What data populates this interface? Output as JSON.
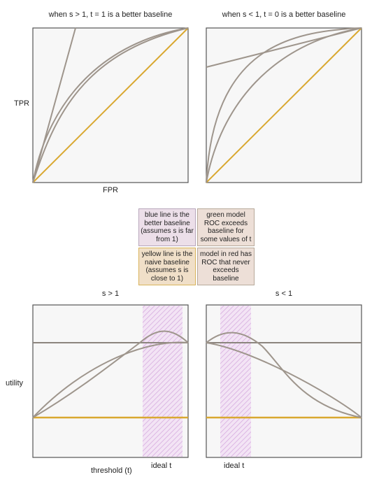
{
  "top_panels": {
    "left_title": "when s > 1, t = 1 is a better baseline",
    "right_title": "when s < 1, t = 0 is a better baseline",
    "y_label": "TPR",
    "x_label": "FPR"
  },
  "legend": {
    "blue_line": "blue line is the better baseline (assumes s is far from 1)",
    "green_model": "green model ROC exceeds baseline for some values of t",
    "yellow_line": "yellow line is the naive baseline (assumes s is close to 1)",
    "red_model": "model in red has ROC that never exceeds baseline"
  },
  "bottom_panels": {
    "left_title": "s > 1",
    "right_title": "s < 1",
    "y_label": "utility",
    "x_label": "threshold (t)",
    "left_band_label": "ideal t",
    "right_band_label": "ideal t"
  },
  "colors": {
    "panel_bg": "#f7f7f7",
    "frame": "#555555",
    "model_curve": "#9e958c",
    "baseline_yellow": "#d9a830",
    "hatch": "#d9b3e6"
  }
}
